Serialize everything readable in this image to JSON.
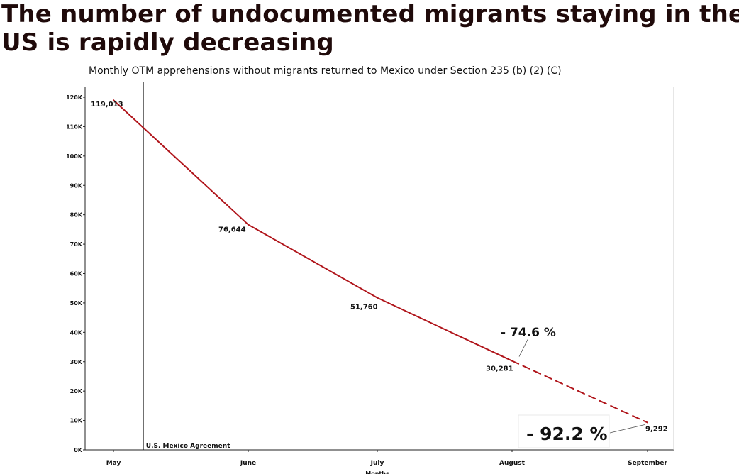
{
  "headline": {
    "line1": "The number of undocumented migrants staying in the",
    "line2": "US is rapidly decreasing"
  },
  "colors": {
    "series": "#b0151b",
    "axis": "#222222",
    "text": "#111111"
  },
  "chart_data": {
    "type": "line",
    "title": "Monthly OTM apprehensions without migrants returned to Mexico under Section 235 (b) (2) (C)",
    "xlabel": "Months",
    "ylabel": "",
    "categories": [
      "May",
      "June",
      "July",
      "August",
      "September"
    ],
    "values": [
      119013,
      76644,
      51760,
      30281,
      9292
    ],
    "value_labels": [
      "119,013",
      "76,644",
      "51,760",
      "30,281",
      "9,292"
    ],
    "projected_segment": {
      "from": "August",
      "to": "September",
      "style": "dashed"
    },
    "ylim": [
      0,
      120000
    ],
    "y_ticks": [
      {
        "value": 0,
        "label": "0K"
      },
      {
        "value": 10000,
        "label": "10K"
      },
      {
        "value": 20000,
        "label": "20K"
      },
      {
        "value": 30000,
        "label": "30K"
      },
      {
        "value": 40000,
        "label": "40K"
      },
      {
        "value": 50000,
        "label": "50K"
      },
      {
        "value": 60000,
        "label": "60K"
      },
      {
        "value": 70000,
        "label": "70K"
      },
      {
        "value": 80000,
        "label": "80K"
      },
      {
        "value": 90000,
        "label": "90K"
      },
      {
        "value": 100000,
        "label": "100K"
      },
      {
        "value": 110000,
        "label": "110K"
      },
      {
        "value": 120000,
        "label": "120K"
      }
    ],
    "reference_line": {
      "label": "U.S. Mexico Agreement",
      "position_months_after_may": 0.22
    },
    "annotations": [
      {
        "text": "- 74.6 %",
        "points_to": "August"
      },
      {
        "text": "- 92.2 %",
        "points_to": "September"
      }
    ],
    "grid": false
  }
}
